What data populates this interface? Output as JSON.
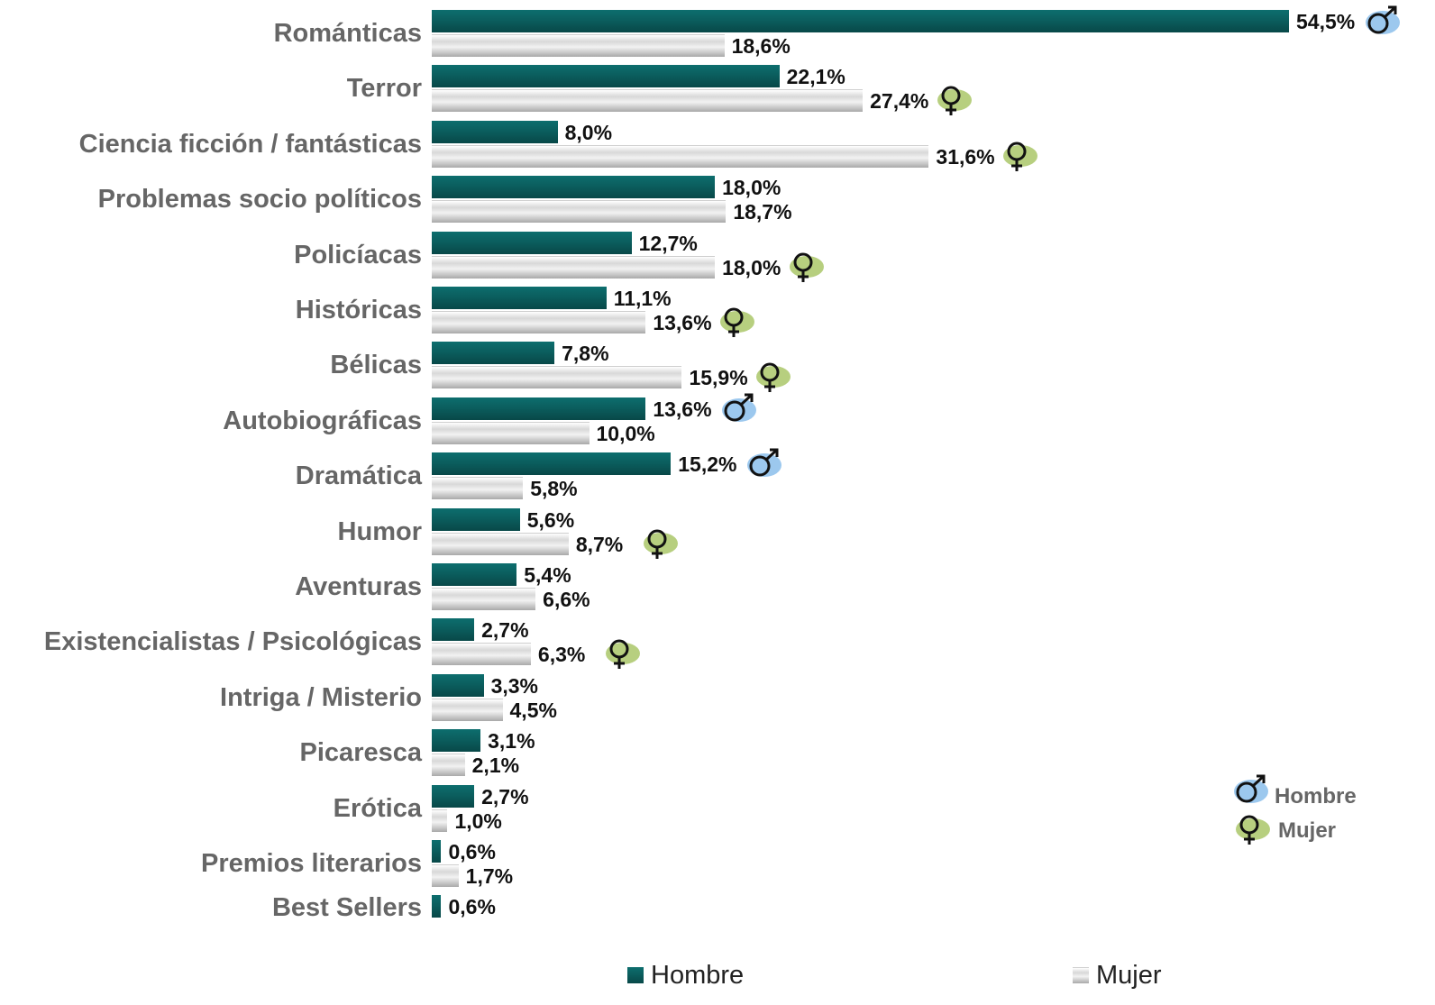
{
  "chart_data": {
    "type": "bar",
    "orientation": "horizontal",
    "categories": [
      "Románticas",
      "Terror",
      "Ciencia ficción / fantásticas",
      "Problemas socio políticos",
      "Policíacas",
      "Históricas",
      "Bélicas",
      "Autobiográficas",
      "Dramática",
      "Humor",
      "Aventuras",
      "Existencialistas / Psicológicas",
      "Intriga / Misterio",
      "Picaresca",
      "Erótica",
      "Premios literarios",
      "Best Sellers"
    ],
    "series": [
      {
        "name": "Hombre",
        "color": "#0b5e5e",
        "values": [
          54.5,
          22.1,
          8.0,
          18.0,
          12.7,
          11.1,
          7.8,
          13.6,
          15.2,
          5.6,
          5.4,
          2.7,
          3.3,
          3.1,
          2.7,
          0.6,
          0.6
        ],
        "labels": [
          "54,5%",
          "22,1%",
          "8,0%",
          "18,0%",
          "12,7%",
          "11,1%",
          "7,8%",
          "13,6%",
          "15,2%",
          "5,6%",
          "5,4%",
          "2,7%",
          "3,3%",
          "3,1%",
          "2,7%",
          "0,6%",
          "0,6%"
        ]
      },
      {
        "name": "Mujer",
        "color": "#d9d9d9",
        "values": [
          18.6,
          27.4,
          31.6,
          18.7,
          18.0,
          13.6,
          15.9,
          10.0,
          5.8,
          8.7,
          6.6,
          6.3,
          4.5,
          2.1,
          1.0,
          1.7,
          null
        ],
        "labels": [
          "18,6%",
          "27,4%",
          "31,6%",
          "18,7%",
          "18,0%",
          "13,6%",
          "15,9%",
          "10,0%",
          "5,8%",
          "8,7%",
          "6,6%",
          "6,3%",
          "4,5%",
          "2,1%",
          "1,0%",
          "1,7%",
          null
        ]
      }
    ],
    "highlights": [
      {
        "category": "Románticas",
        "series": "Hombre",
        "icon": "male-symbol-icon"
      },
      {
        "category": "Terror",
        "series": "Mujer",
        "icon": "female-symbol-icon"
      },
      {
        "category": "Ciencia ficción / fantásticas",
        "series": "Mujer",
        "icon": "female-symbol-icon"
      },
      {
        "category": "Policíacas",
        "series": "Mujer",
        "icon": "female-symbol-icon"
      },
      {
        "category": "Históricas",
        "series": "Mujer",
        "icon": "female-symbol-icon"
      },
      {
        "category": "Bélicas",
        "series": "Mujer",
        "icon": "female-symbol-icon"
      },
      {
        "category": "Autobiográficas",
        "series": "Hombre",
        "icon": "male-symbol-icon"
      },
      {
        "category": "Dramática",
        "series": "Hombre",
        "icon": "male-symbol-icon"
      },
      {
        "category": "Humor",
        "series": "Mujer",
        "icon": "female-symbol-icon"
      },
      {
        "category": "Existencialistas / Psicológicas",
        "series": "Mujer",
        "icon": "female-symbol-icon"
      }
    ],
    "xlim": [
      0,
      60
    ],
    "grid": false,
    "legend": {
      "position": "bottom",
      "items": [
        {
          "label": "Hombre",
          "color": "#0b5e5e"
        },
        {
          "label": "Mujer",
          "color": "#d9d9d9"
        }
      ]
    },
    "symbol_legend": {
      "position": "right",
      "items": [
        {
          "label": "Hombre",
          "icon": "male-symbol-icon",
          "color": "#9cc8ee"
        },
        {
          "label": "Mujer",
          "icon": "female-symbol-icon",
          "color": "#b7cf7f"
        }
      ]
    }
  }
}
